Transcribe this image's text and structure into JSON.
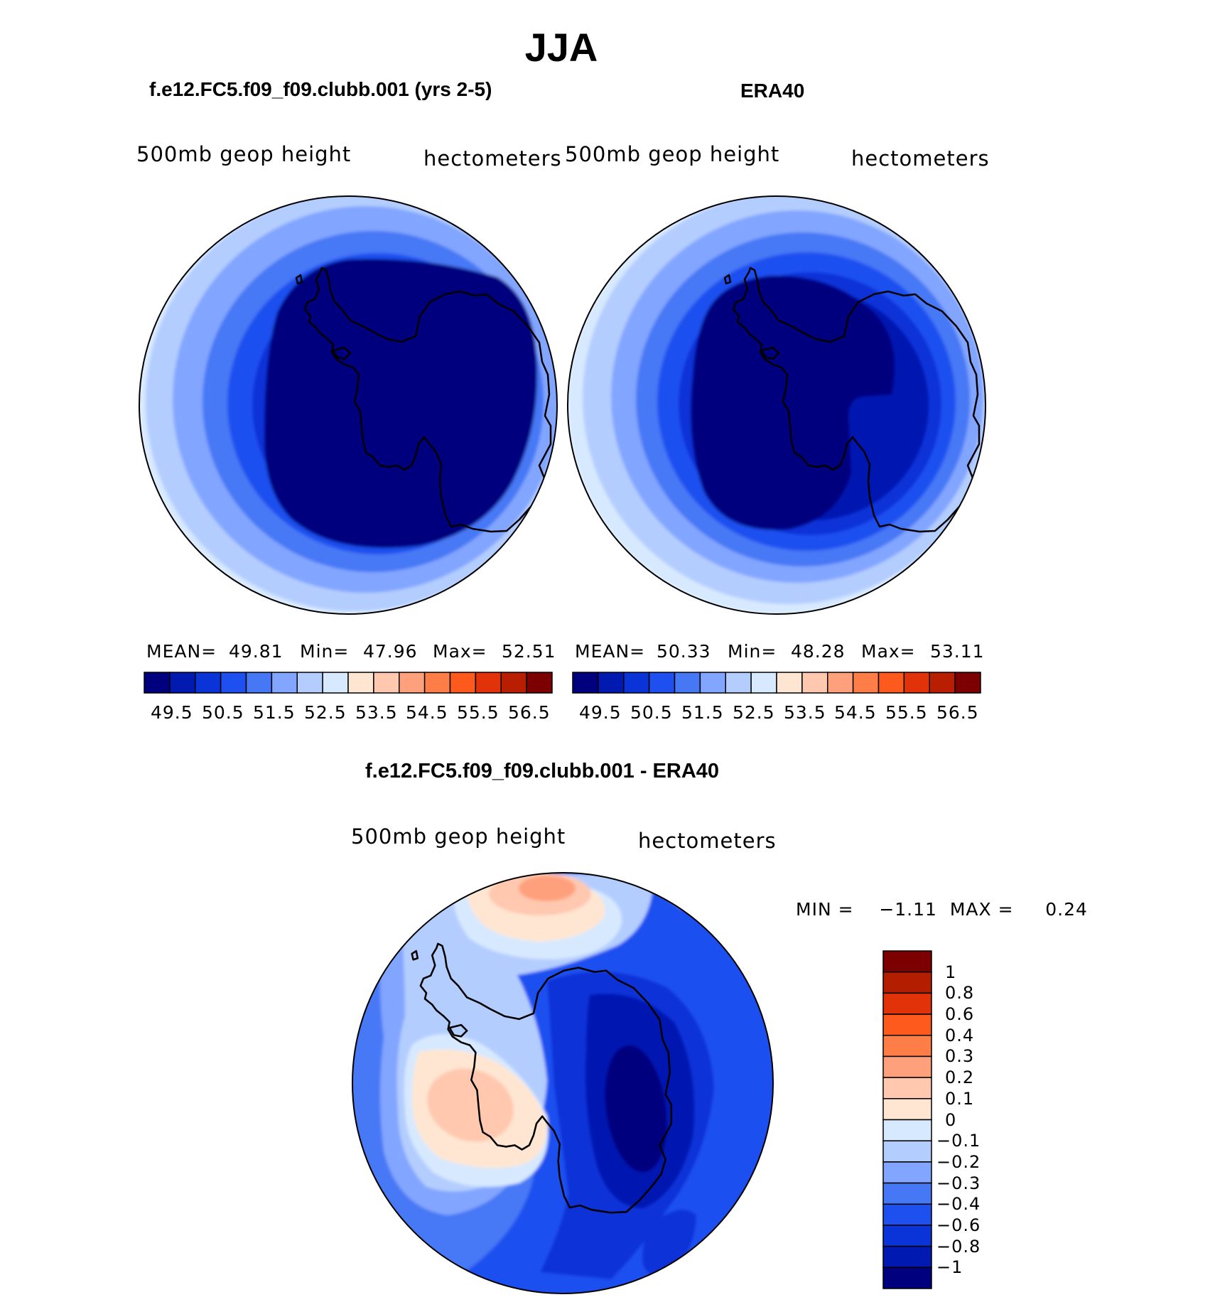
{
  "page_title": "JJA",
  "panels": [
    {
      "name": "model",
      "case_title": "f.e12.FC5.f09_f09.clubb.001 (yrs 2-5)",
      "field_label": "500mb  geop  height",
      "units_label": "hectometers",
      "stats": {
        "mean_label": "MEAN=",
        "mean": "49.81",
        "min_label": "Min=",
        "min": "47.96",
        "max_label": "Max=",
        "max": "52.51"
      },
      "colorbar_ticks": [
        "49.5",
        "50.5",
        "51.5",
        "52.5",
        "53.5",
        "54.5",
        "55.5",
        "56.5"
      ]
    },
    {
      "name": "obs",
      "case_title": "ERA40",
      "field_label": "500mb  geop  height",
      "units_label": "hectometers",
      "stats": {
        "mean_label": "MEAN=",
        "mean": "50.33",
        "min_label": "Min=",
        "min": "48.28",
        "max_label": "Max=",
        "max": "53.11"
      },
      "colorbar_ticks": [
        "49.5",
        "50.5",
        "51.5",
        "52.5",
        "53.5",
        "54.5",
        "55.5",
        "56.5"
      ]
    }
  ],
  "colorbar_colors": [
    "#00007f",
    "#0019b0",
    "#0a33d8",
    "#1e50f0",
    "#4678f5",
    "#82a5ff",
    "#b4cdff",
    "#d7e9ff",
    "#ffe6d2",
    "#ffc8af",
    "#ffa07d",
    "#ff7d46",
    "#ff5a1e",
    "#e1320a",
    "#b91e00",
    "#7d0000"
  ],
  "difference": {
    "title": "f.e12.FC5.f09_f09.clubb.001 - ERA40",
    "field_label": "500mb  geop  height",
    "units_label": "hectometers",
    "min_max_text": "MIN =    −1.11  MAX =     0.24",
    "colorbar_labels_top_to_bottom": [
      "1",
      "0.8",
      "0.6",
      "0.4",
      "0.3",
      "0.2",
      "0.1",
      "0",
      "−0.1",
      "−0.2",
      "−0.3",
      "−0.4",
      "−0.6",
      "−0.8",
      "−1"
    ],
    "colorbar_colors_top_to_bottom": [
      "#7d0000",
      "#b41e00",
      "#e1320a",
      "#ff5a1e",
      "#ff7d46",
      "#ffa07d",
      "#ffc8af",
      "#ffe6d2",
      "#d7e9ff",
      "#b4cdff",
      "#82a5ff",
      "#4678f5",
      "#1e50f0",
      "#0a33d8",
      "#0019b0",
      "#00007f"
    ]
  }
}
